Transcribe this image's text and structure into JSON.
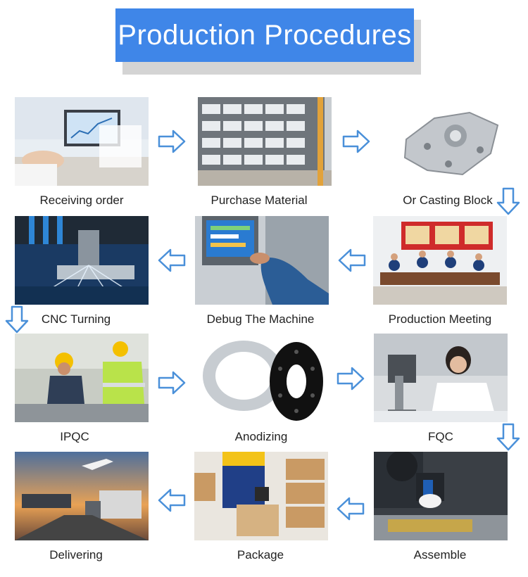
{
  "title": "Production Procedures",
  "steps": [
    {
      "label": "Receiving order",
      "icon": "meeting-desk-photo"
    },
    {
      "label": "Purchase Material",
      "icon": "material-shelf-photo"
    },
    {
      "label": "Or Casting Block",
      "icon": "casting-block-photo"
    },
    {
      "label": "Production Meeting",
      "icon": "meeting-room-photo"
    },
    {
      "label": "Debug The Machine",
      "icon": "machine-panel-photo"
    },
    {
      "label": "CNC Turning",
      "icon": "cnc-machine-photo"
    },
    {
      "label": "IPQC",
      "icon": "workers-photo"
    },
    {
      "label": "Anodizing",
      "icon": "anodized-parts-photo"
    },
    {
      "label": "FQC",
      "icon": "inspection-photo"
    },
    {
      "label": "Assemble",
      "icon": "assembly-photo"
    },
    {
      "label": "Package",
      "icon": "packaging-photo"
    },
    {
      "label": "Delivering",
      "icon": "logistics-photo"
    }
  ],
  "colors": {
    "title_bg": "#3f86e8",
    "arrow": "#4a90d9"
  }
}
